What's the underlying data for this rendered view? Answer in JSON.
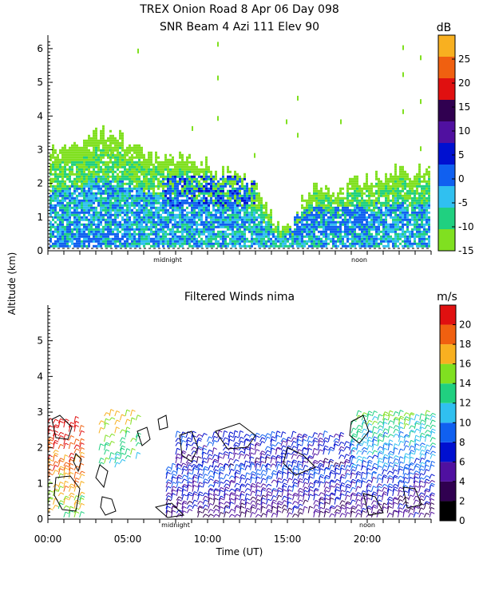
{
  "figure": {
    "title_line1": "TREX Onion Road   8 Apr 06 Day 098",
    "y_axis_label": "Altitude (km)",
    "x_axis_label": "Time (UT)"
  },
  "chart_data": [
    {
      "type": "heatmap",
      "title": "SNR Beam 4 Azi 111 Elev 90",
      "ylabel": "Altitude (km)",
      "ylim": [
        0,
        6.4
      ],
      "yticks": [
        "0",
        "1",
        "2",
        "3",
        "4",
        "5",
        "6"
      ],
      "xlim_hours": [
        0,
        24
      ],
      "x_markers": [
        {
          "hour": 7.5,
          "label": "midnight"
        },
        {
          "hour": 19.5,
          "label": "noon"
        }
      ],
      "colorbar": {
        "unit": "dB",
        "range": [
          -15,
          30
        ],
        "tick_labels": [
          "25",
          "20",
          "15",
          "10",
          "5",
          "0",
          "-5",
          "-10",
          "-15"
        ],
        "tick_values": [
          25,
          20,
          15,
          10,
          5,
          0,
          -5,
          -10,
          -15
        ],
        "bands": [
          "#80e020",
          "#20d080",
          "#30c0f0",
          "#1060f0",
          "#0010d0",
          "#5010a0",
          "#300050",
          "#e01010",
          "#f06010",
          "#f8b020"
        ]
      },
      "echo_top_km": [
        {
          "hour": 0.0,
          "top": 3.1
        },
        {
          "hour": 1.0,
          "top": 2.9
        },
        {
          "hour": 2.0,
          "top": 3.2
        },
        {
          "hour": 3.0,
          "top": 3.4
        },
        {
          "hour": 4.0,
          "top": 3.5
        },
        {
          "hour": 5.0,
          "top": 3.1
        },
        {
          "hour": 6.0,
          "top": 2.9
        },
        {
          "hour": 7.0,
          "top": 2.7
        },
        {
          "hour": 8.0,
          "top": 2.7
        },
        {
          "hour": 9.0,
          "top": 2.6
        },
        {
          "hour": 10.0,
          "top": 2.5
        },
        {
          "hour": 11.0,
          "top": 2.3
        },
        {
          "hour": 12.0,
          "top": 2.2
        },
        {
          "hour": 13.0,
          "top": 1.9
        },
        {
          "hour": 14.0,
          "top": 1.0
        },
        {
          "hour": 15.0,
          "top": 0.6
        },
        {
          "hour": 16.0,
          "top": 1.5
        },
        {
          "hour": 17.0,
          "top": 1.9
        },
        {
          "hour": 18.0,
          "top": 1.6
        },
        {
          "hour": 19.0,
          "top": 2.0
        },
        {
          "hour": 20.0,
          "top": 2.1
        },
        {
          "hour": 21.0,
          "top": 2.3
        },
        {
          "hour": 22.0,
          "top": 2.4
        },
        {
          "hour": 23.0,
          "top": 2.3
        },
        {
          "hour": 24.0,
          "top": 2.3
        }
      ]
    },
    {
      "type": "scatter",
      "title": "Filtered Winds nima",
      "ylabel": "Altitude (km)",
      "xlabel": "Time (UT)",
      "ylim": [
        0,
        6
      ],
      "yticks": [
        "0",
        "1",
        "2",
        "3",
        "4",
        "5"
      ],
      "xlim_hours": [
        0,
        24
      ],
      "xticks": [
        {
          "hour": 0,
          "label": "00:00"
        },
        {
          "hour": 5,
          "label": "05:00"
        },
        {
          "hour": 10,
          "label": "10:00"
        },
        {
          "hour": 15,
          "label": "15:00"
        },
        {
          "hour": 20,
          "label": "20:00"
        }
      ],
      "x_markers": [
        {
          "hour": 8,
          "label": "midnight"
        },
        {
          "hour": 20,
          "label": "noon"
        }
      ],
      "colorbar": {
        "unit": "m/s",
        "range": [
          0,
          22
        ],
        "tick_labels": [
          "20",
          "18",
          "16",
          "14",
          "12",
          "10",
          "8",
          "6",
          "4",
          "2",
          "0"
        ],
        "tick_values": [
          20,
          18,
          16,
          14,
          12,
          10,
          8,
          6,
          4,
          2,
          0
        ],
        "bands": [
          "#000000",
          "#300050",
          "#5010a0",
          "#0010d0",
          "#1060f0",
          "#30c0f0",
          "#20d080",
          "#80e020",
          "#f8b020",
          "#f06010",
          "#e01010"
        ]
      },
      "wind_coverage": [
        {
          "hour_start": 0.0,
          "hour_end": 2.2,
          "alt_start": 0.0,
          "alt_end": 2.8,
          "speed": 14,
          "density": 0.75
        },
        {
          "hour_start": 3.2,
          "hour_end": 5.8,
          "alt_start": 1.4,
          "alt_end": 2.9,
          "speed": 12,
          "density": 0.5
        },
        {
          "hour_start": 7.4,
          "hour_end": 24.0,
          "alt_start": 0.0,
          "alt_end": 1.4,
          "speed": 4,
          "density": 0.95
        },
        {
          "hour_start": 8.0,
          "hour_end": 19.0,
          "alt_start": 1.4,
          "alt_end": 2.3,
          "speed": 5,
          "density": 0.85
        },
        {
          "hour_start": 19.0,
          "hour_end": 24.0,
          "alt_start": 1.4,
          "alt_end": 2.9,
          "speed": 9,
          "density": 0.9
        }
      ]
    }
  ]
}
